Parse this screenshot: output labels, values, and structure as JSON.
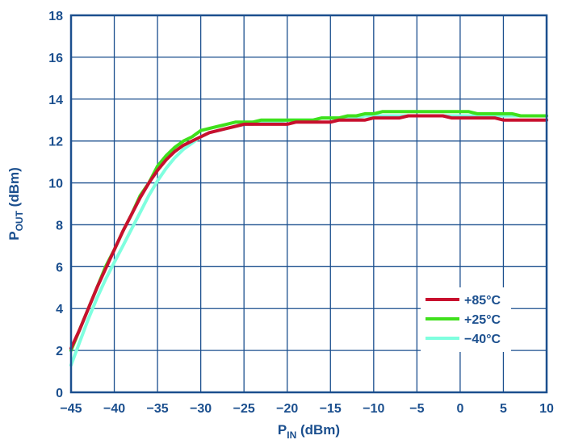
{
  "chart_data": {
    "type": "line",
    "title": "",
    "xlabel": {
      "main": "P",
      "sub": "IN",
      "unit": " (dBm)"
    },
    "ylabel": {
      "main": "P",
      "sub": "OUT",
      "unit": " (dBm)"
    },
    "xlim": [
      -45,
      10
    ],
    "ylim": [
      0,
      18
    ],
    "x_ticks": [
      "−45",
      "−40",
      "−35",
      "−30",
      "−25",
      "−20",
      "−15",
      "−10",
      "−5",
      "0",
      "5",
      "10"
    ],
    "x_tick_values": [
      -45,
      -40,
      -35,
      -30,
      -25,
      -20,
      -15,
      -10,
      -5,
      0,
      5,
      10
    ],
    "y_ticks": [
      "0",
      "2",
      "4",
      "6",
      "8",
      "10",
      "12",
      "14",
      "16",
      "18"
    ],
    "y_tick_values": [
      0,
      2,
      4,
      6,
      8,
      10,
      12,
      14,
      16,
      18
    ],
    "grid": true,
    "legend_position": "bottom-right",
    "colors": {
      "axis_text": "#1b4f8e",
      "grid": "#1b4f8e",
      "frame": "#1b4f8e"
    },
    "series": [
      {
        "name": "−40°C",
        "color": "#7fffdf",
        "x": [
          -45,
          -44,
          -43,
          -42,
          -41,
          -40,
          -39,
          -38,
          -37,
          -36,
          -35,
          -34,
          -33,
          -32,
          -31,
          -30,
          -29,
          -28,
          -27,
          -26,
          -25,
          -24,
          -23,
          -22,
          -21,
          -20,
          -19,
          -18,
          -17,
          -16,
          -15,
          -14,
          -13,
          -12,
          -11,
          -10,
          -9,
          -8,
          -7,
          -6,
          -5,
          -4,
          -3,
          -2,
          -1,
          0,
          1,
          2,
          3,
          4,
          5,
          6,
          7,
          8,
          9,
          10
        ],
        "values": [
          1.3,
          2.4,
          3.5,
          4.5,
          5.4,
          6.2,
          7.0,
          7.8,
          8.6,
          9.4,
          10.1,
          10.7,
          11.2,
          11.6,
          11.9,
          12.2,
          12.4,
          12.5,
          12.6,
          12.7,
          12.8,
          12.8,
          12.9,
          12.9,
          12.9,
          13.0,
          13.0,
          13.0,
          13.0,
          13.1,
          13.1,
          13.1,
          13.1,
          13.1,
          13.2,
          13.2,
          13.2,
          13.2,
          13.2,
          13.2,
          13.2,
          13.2,
          13.2,
          13.2,
          13.2,
          13.2,
          13.2,
          13.2,
          13.2,
          13.2,
          13.2,
          13.2,
          13.2,
          13.2,
          13.2,
          13.2
        ]
      },
      {
        "name": "+25°C",
        "color": "#3fe01c",
        "x": [
          -45,
          -44,
          -43,
          -42,
          -41,
          -40,
          -39,
          -38,
          -37,
          -36,
          -35,
          -34,
          -33,
          -32,
          -31,
          -30,
          -29,
          -28,
          -27,
          -26,
          -25,
          -24,
          -23,
          -22,
          -21,
          -20,
          -19,
          -18,
          -17,
          -16,
          -15,
          -14,
          -13,
          -12,
          -11,
          -10,
          -9,
          -8,
          -7,
          -6,
          -5,
          -4,
          -3,
          -2,
          -1,
          0,
          1,
          2,
          3,
          4,
          5,
          6,
          7,
          8,
          9,
          10
        ],
        "values": [
          2.0,
          3.0,
          4.0,
          5.0,
          6.0,
          6.8,
          7.7,
          8.5,
          9.4,
          10.0,
          10.8,
          11.3,
          11.7,
          12.0,
          12.2,
          12.5,
          12.6,
          12.7,
          12.8,
          12.9,
          12.9,
          12.9,
          13.0,
          13.0,
          13.0,
          13.0,
          13.0,
          13.0,
          13.0,
          13.1,
          13.1,
          13.1,
          13.2,
          13.2,
          13.3,
          13.3,
          13.4,
          13.4,
          13.4,
          13.4,
          13.4,
          13.4,
          13.4,
          13.4,
          13.4,
          13.4,
          13.4,
          13.3,
          13.3,
          13.3,
          13.3,
          13.3,
          13.2,
          13.2,
          13.2,
          13.2
        ]
      },
      {
        "name": "+85°C",
        "color": "#c8102e",
        "x": [
          -45,
          -44,
          -43,
          -42,
          -41,
          -40,
          -39,
          -38,
          -37,
          -36,
          -35,
          -34,
          -33,
          -32,
          -31,
          -30,
          -29,
          -28,
          -27,
          -26,
          -25,
          -24,
          -23,
          -22,
          -21,
          -20,
          -19,
          -18,
          -17,
          -16,
          -15,
          -14,
          -13,
          -12,
          -11,
          -10,
          -9,
          -8,
          -7,
          -6,
          -5,
          -4,
          -3,
          -2,
          -1,
          0,
          1,
          2,
          3,
          4,
          5,
          6,
          7,
          8,
          9,
          10
        ],
        "values": [
          2.1,
          3.0,
          4.0,
          5.0,
          5.9,
          6.8,
          7.7,
          8.5,
          9.3,
          10.0,
          10.6,
          11.1,
          11.5,
          11.8,
          12.0,
          12.2,
          12.4,
          12.5,
          12.6,
          12.7,
          12.8,
          12.8,
          12.8,
          12.8,
          12.8,
          12.8,
          12.9,
          12.9,
          12.9,
          12.9,
          12.9,
          13.0,
          13.0,
          13.0,
          13.0,
          13.1,
          13.1,
          13.1,
          13.1,
          13.2,
          13.2,
          13.2,
          13.2,
          13.2,
          13.1,
          13.1,
          13.1,
          13.1,
          13.1,
          13.1,
          13.0,
          13.0,
          13.0,
          13.0,
          13.0,
          13.0
        ]
      }
    ],
    "legend_order": [
      "+85°C",
      "+25°C",
      "−40°C"
    ]
  }
}
